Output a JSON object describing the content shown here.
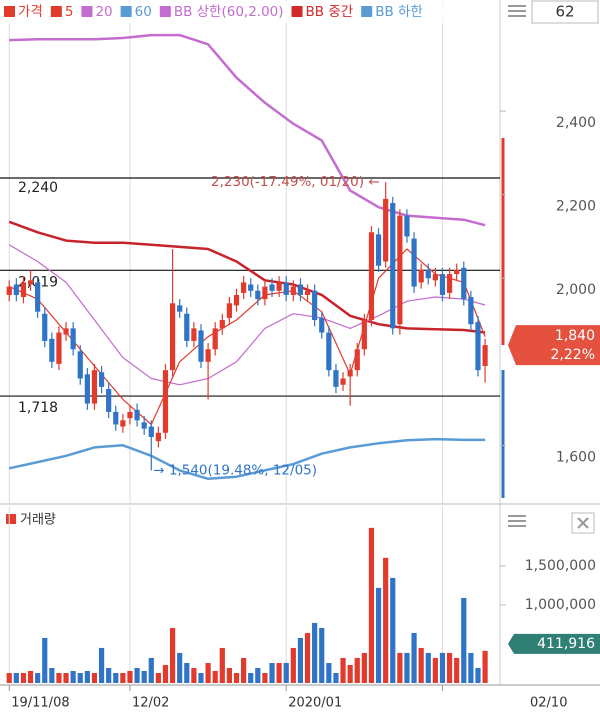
{
  "chart_data": {
    "type": "candlestick",
    "legend": [
      {
        "name": "가격",
        "color": "#e23b2e"
      },
      {
        "name": "5",
        "color": "#e23b2e"
      },
      {
        "name": "20",
        "color": "#c46ccf"
      },
      {
        "name": "60",
        "color": "#5b9bd5"
      },
      {
        "name": "BB 상한(60,2.00)",
        "color": "#c46ccf"
      },
      {
        "name": "BB 중간",
        "color": "#d12a2a"
      },
      {
        "name": "BB 하한",
        "color": "#5b9bd5"
      }
    ],
    "up_color": "#e23b2e",
    "down_color": "#2f74c6",
    "x": [
      0,
      1,
      2,
      3,
      4,
      5,
      6,
      7,
      8,
      9,
      10,
      11,
      12,
      13,
      14,
      15,
      16,
      17,
      18,
      19,
      20,
      21,
      22,
      23,
      24,
      25,
      26,
      27,
      28,
      29,
      30,
      31,
      32,
      33,
      34,
      35,
      36,
      37,
      38,
      39,
      40,
      41,
      42,
      43,
      44,
      45,
      46,
      47,
      48,
      49,
      50,
      51,
      52,
      53,
      54,
      55,
      56,
      57,
      58,
      59,
      60,
      61,
      62,
      63,
      64,
      65,
      66,
      67
    ],
    "open": [
      1960,
      1985,
      1955,
      1985,
      1990,
      1915,
      1855,
      1795,
      1865,
      1880,
      1825,
      1770,
      1700,
      1775,
      1735,
      1680,
      1645,
      1665,
      1685,
      1655,
      1645,
      1610,
      1630,
      1780,
      1935,
      1915,
      1850,
      1875,
      1800,
      1830,
      1880,
      1905,
      1935,
      1965,
      1985,
      1970,
      1950,
      1985,
      1970,
      1990,
      1960,
      1985,
      1960,
      1970,
      1905,
      1870,
      1780,
      1745,
      1765,
      1780,
      1830,
      1900,
      2105,
      2040,
      2180,
      1890,
      2150,
      2095,
      1990,
      2020,
      1995,
      2010,
      1965,
      2010,
      2025,
      1955,
      1895,
      1790
    ],
    "high": [
      1995,
      2000,
      2005,
      2019,
      2005,
      1930,
      1870,
      1885,
      1895,
      1895,
      1840,
      1785,
      1795,
      1790,
      1750,
      1695,
      1675,
      1695,
      1700,
      1670,
      1660,
      1645,
      1795,
      2070,
      1950,
      1930,
      1895,
      1890,
      1845,
      1895,
      1915,
      1955,
      1975,
      2005,
      2000,
      1985,
      1995,
      2000,
      2005,
      2005,
      1995,
      2000,
      1985,
      1985,
      1920,
      1885,
      1795,
      1775,
      1795,
      1845,
      1915,
      2125,
      2120,
      2230,
      2195,
      2165,
      2165,
      2110,
      2035,
      2035,
      2025,
      2025,
      2025,
      2035,
      2040,
      1970,
      1910,
      1855
    ],
    "low": [
      1945,
      1945,
      1940,
      1970,
      1905,
      1835,
      1785,
      1780,
      1850,
      1815,
      1745,
      1685,
      1685,
      1725,
      1665,
      1635,
      1630,
      1650,
      1645,
      1625,
      1540,
      1595,
      1615,
      1765,
      1905,
      1835,
      1835,
      1785,
      1710,
      1815,
      1865,
      1890,
      1920,
      1950,
      1955,
      1935,
      1935,
      1955,
      1955,
      1945,
      1945,
      1945,
      1945,
      1885,
      1855,
      1765,
      1725,
      1730,
      1695,
      1765,
      1815,
      1885,
      2015,
      2025,
      1865,
      1865,
      2085,
      1965,
      1975,
      1985,
      1980,
      1945,
      1950,
      1995,
      1935,
      1875,
      1765,
      1750
    ],
    "close": [
      1980,
      1960,
      1990,
      1995,
      1920,
      1850,
      1800,
      1870,
      1880,
      1830,
      1760,
      1700,
      1780,
      1740,
      1680,
      1650,
      1660,
      1680,
      1660,
      1640,
      1620,
      1630,
      1780,
      1940,
      1920,
      1850,
      1880,
      1800,
      1830,
      1880,
      1900,
      1940,
      1960,
      1990,
      1970,
      1950,
      1980,
      1970,
      1990,
      1960,
      1980,
      1960,
      1970,
      1900,
      1870,
      1780,
      1740,
      1760,
      1780,
      1830,
      1900,
      2110,
      2030,
      2190,
      1880,
      2150,
      2100,
      1980,
      2020,
      2000,
      2010,
      1960,
      2010,
      2020,
      1950,
      1890,
      1780,
      1840
    ],
    "volume": [
      128000,
      128000,
      128000,
      154000,
      128000,
      577000,
      192000,
      128000,
      128000,
      154000,
      128000,
      154000,
      128000,
      449000,
      192000,
      128000,
      128000,
      154000,
      192000,
      154000,
      321000,
      128000,
      231000,
      705000,
      385000,
      256000,
      192000,
      128000,
      256000,
      154000,
      449000,
      192000,
      128000,
      321000,
      128000,
      192000,
      128000,
      256000,
      256000,
      256000,
      449000,
      577000,
      641000,
      769000,
      705000,
      256000,
      128000,
      321000,
      231000,
      321000,
      385000,
      1987000,
      1218000,
      1603000,
      1346000,
      385000,
      385000,
      641000,
      449000,
      385000,
      321000,
      385000,
      385000,
      321000,
      1090000,
      385000,
      192000,
      411916
    ],
    "lines": [
      {
        "color": "#c46ccf",
        "width": 2.5,
        "x": [
          0,
          4,
          8,
          12,
          16,
          20,
          24,
          28,
          32,
          36,
          40,
          44,
          48,
          52,
          56,
          60,
          64,
          67
        ],
        "values": [
          2570,
          2572,
          2572,
          2572,
          2575,
          2582,
          2582,
          2560,
          2480,
          2420,
          2370,
          2330,
          2210,
          2170,
          2150,
          2145,
          2140,
          2127
        ]
      },
      {
        "color": "#c7232b",
        "width": 2.5,
        "x": [
          0,
          4,
          8,
          12,
          16,
          20,
          24,
          28,
          32,
          36,
          40,
          44,
          48,
          52,
          56,
          60,
          64,
          67
        ],
        "values": [
          2135,
          2110,
          2090,
          2085,
          2085,
          2080,
          2075,
          2070,
          2040,
          1995,
          1985,
          1960,
          1910,
          1890,
          1880,
          1878,
          1876,
          1870
        ]
      },
      {
        "color": "#5b9bd5",
        "width": 2.5,
        "x": [
          0,
          4,
          8,
          12,
          16,
          20,
          24,
          28,
          32,
          36,
          40,
          44,
          48,
          52,
          56,
          60,
          64,
          67
        ],
        "values": [
          1545,
          1560,
          1575,
          1595,
          1600,
          1575,
          1540,
          1520,
          1525,
          1540,
          1555,
          1580,
          1595,
          1605,
          1612,
          1615,
          1613,
          1613
        ]
      },
      {
        "color": "#c46ccf",
        "width": 1.2,
        "x": [
          0,
          4,
          8,
          12,
          16,
          20,
          24,
          28,
          32,
          36,
          40,
          44,
          48,
          52,
          56,
          60,
          64,
          67
        ],
        "values": [
          2080,
          2040,
          1990,
          1900,
          1810,
          1760,
          1745,
          1760,
          1800,
          1880,
          1915,
          1905,
          1880,
          1910,
          1945,
          1955,
          1950,
          1936
        ]
      },
      {
        "color": "#e23b2e",
        "width": 1.2,
        "x": [
          0,
          4,
          8,
          12,
          16,
          20,
          24,
          28,
          32,
          36,
          40,
          44,
          48,
          52,
          56,
          60,
          64,
          67
        ],
        "values": [
          1980,
          1950,
          1870,
          1790,
          1710,
          1650,
          1800,
          1860,
          1900,
          1960,
          1970,
          1920,
          1770,
          2000,
          2070,
          2010,
          1990,
          1860
        ]
      }
    ],
    "xlim": [
      -1.3,
      69.1
    ],
    "ylim": [
      1462,
      2666
    ],
    "yticks": [
      {
        "value": 1600,
        "label": "1,600"
      },
      {
        "value": 2000,
        "label": "2,000"
      },
      {
        "value": 2200,
        "label": "2,200"
      },
      {
        "value": 2400,
        "label": "2,400"
      }
    ],
    "xticks": [
      {
        "value": 0,
        "label": "19/11/08"
      },
      {
        "value": 17,
        "label": "12/02"
      },
      {
        "value": 39,
        "label": "2020/01"
      },
      {
        "value": 61,
        "label": null
      }
    ],
    "volume_ylim": [
      0,
      2190000
    ],
    "volume_yticks": [
      {
        "value": 1000000,
        "label": "1,000,000"
      },
      {
        "value": 1500000,
        "label": "1,500,000"
      }
    ],
    "volume_label": "거래량",
    "levels": [
      {
        "value": 2240,
        "label": "2,240"
      },
      {
        "value": 2019,
        "label": "2,019"
      },
      {
        "value": 1718,
        "label": "1,718"
      }
    ],
    "annotations": [
      {
        "text": "2,230(-17.49%, 01/20) ←",
        "x": 53,
        "value": 2230,
        "color": "#c0504d"
      },
      {
        "text": "→ 1,540(19.48%, 12/05)",
        "x": 20,
        "value": 1540,
        "color": "#2f74c6"
      }
    ],
    "current": {
      "value": 1840,
      "label": "1,840",
      "change": "2,22%"
    },
    "current_volume": {
      "value": 411916,
      "label": "411,916"
    },
    "period": "62",
    "last_date": "02/10"
  }
}
